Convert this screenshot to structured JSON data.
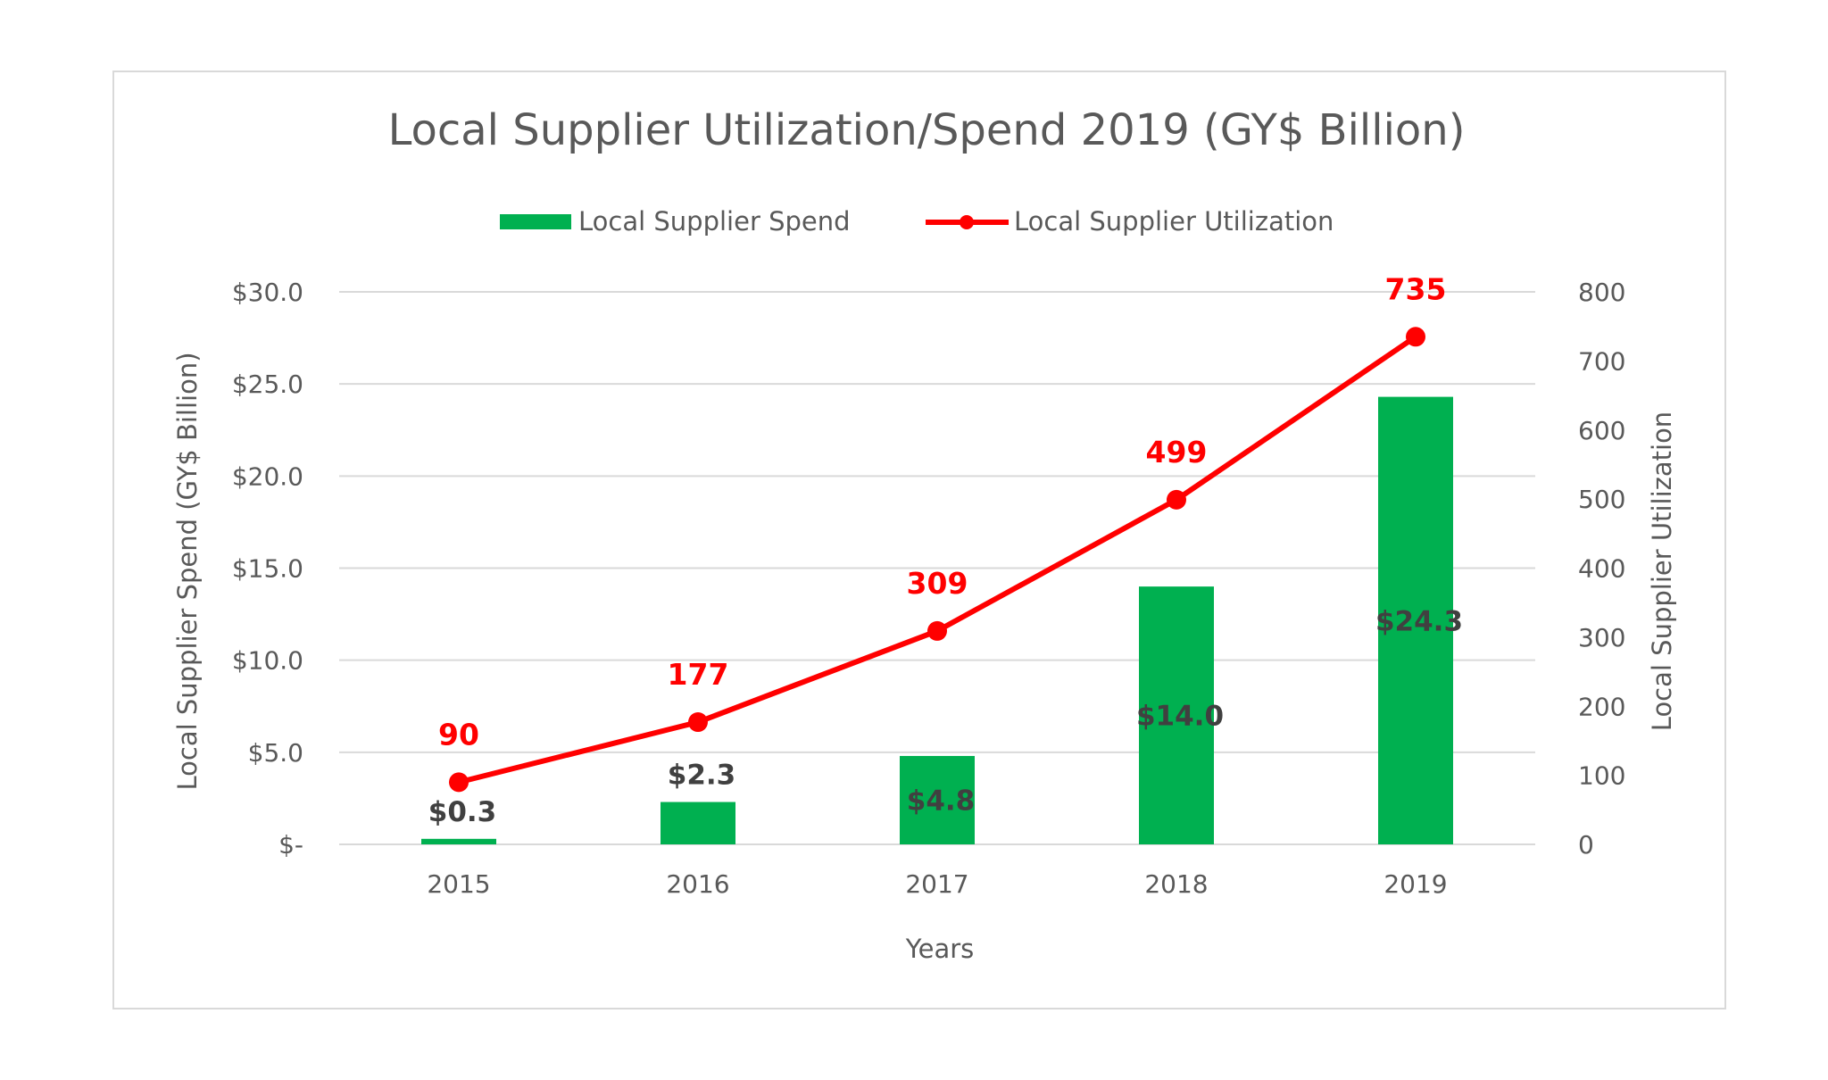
{
  "chart_data": {
    "type": "bar",
    "title": "Local Supplier Utilization/Spend 2019 (GY$ Billion)",
    "xlabel": "Years",
    "ylabel": "Local Supplier Spend (GY$ Billion)",
    "y2label": "Local Supplier Utilization",
    "categories": [
      "2015",
      "2016",
      "2017",
      "2018",
      "2019"
    ],
    "series": [
      {
        "name": "Local Supplier Spend",
        "type": "bar",
        "axis": "left",
        "color": "#00b050",
        "values": [
          0.3,
          2.3,
          4.8,
          14.0,
          24.3
        ],
        "labels": [
          "$0.3",
          "$2.3",
          "$4.8",
          "$14.0",
          "$24.3"
        ]
      },
      {
        "name": "Local Supplier Utilization",
        "type": "line",
        "axis": "right",
        "color": "#ff0000",
        "values": [
          90,
          177,
          309,
          499,
          735
        ],
        "labels": [
          "90",
          "177",
          "309",
          "499",
          "735"
        ]
      }
    ],
    "ylim": [
      0,
      30
    ],
    "y_ticks": [
      0,
      5,
      10,
      15,
      20,
      25,
      30
    ],
    "y_tick_labels": [
      "$-",
      "$5.0",
      "$10.0",
      "$15.0",
      "$20.0",
      "$25.0",
      "$30.0"
    ],
    "y2lim": [
      0,
      800
    ],
    "y2_ticks": [
      0,
      100,
      200,
      300,
      400,
      500,
      600,
      700,
      800
    ],
    "y2_tick_labels": [
      "0",
      "100",
      "200",
      "300",
      "400",
      "500",
      "600",
      "700",
      "800"
    ],
    "grid": true,
    "legend_position": "top",
    "gridline_color": "#d9d9d9"
  }
}
